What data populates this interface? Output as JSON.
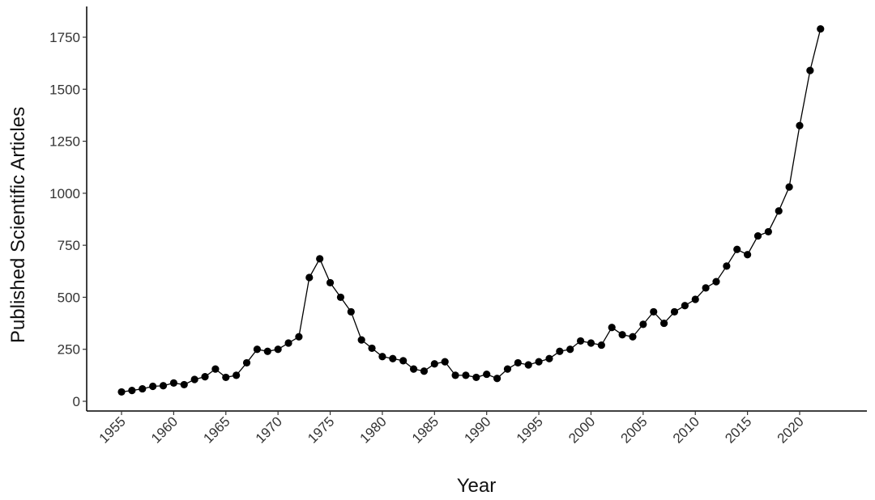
{
  "chart_data": {
    "type": "line",
    "title": "",
    "xlabel": "Year",
    "ylabel": "Published Scientific Articles",
    "xlim": [
      1955,
      2022
    ],
    "ylim": [
      0,
      1750
    ],
    "grid": false,
    "x_ticks": [
      "1955",
      "1960",
      "1965",
      "1970",
      "1975",
      "1980",
      "1985",
      "1990",
      "1995",
      "2000",
      "2005",
      "2010",
      "2015",
      "2020"
    ],
    "y_ticks": [
      "0",
      "250",
      "500",
      "750",
      "1000",
      "1250",
      "1500",
      "1750"
    ],
    "series": [
      {
        "name": "Published Scientific Articles",
        "color": "#000000",
        "x": [
          1955,
          1956,
          1957,
          1958,
          1959,
          1960,
          1961,
          1962,
          1963,
          1964,
          1965,
          1966,
          1967,
          1968,
          1969,
          1970,
          1971,
          1972,
          1973,
          1974,
          1975,
          1976,
          1977,
          1978,
          1979,
          1980,
          1981,
          1982,
          1983,
          1984,
          1985,
          1986,
          1987,
          1988,
          1989,
          1990,
          1991,
          1992,
          1993,
          1994,
          1995,
          1996,
          1997,
          1998,
          1999,
          2000,
          2001,
          2002,
          2003,
          2004,
          2005,
          2006,
          2007,
          2008,
          2009,
          2010,
          2011,
          2012,
          2013,
          2014,
          2015,
          2016,
          2017,
          2018,
          2019,
          2020,
          2021,
          2022
        ],
        "values": [
          45,
          52,
          60,
          72,
          75,
          88,
          80,
          105,
          118,
          155,
          115,
          125,
          185,
          250,
          240,
          250,
          280,
          310,
          595,
          685,
          570,
          500,
          430,
          295,
          255,
          215,
          205,
          195,
          155,
          145,
          180,
          190,
          125,
          125,
          115,
          130,
          110,
          155,
          185,
          175,
          190,
          205,
          240,
          250,
          290,
          280,
          270,
          355,
          320,
          310,
          370,
          430,
          375,
          430,
          460,
          490,
          545,
          575,
          650,
          730,
          705,
          795,
          815,
          915,
          1030,
          1325,
          1590,
          1790
        ]
      }
    ]
  }
}
